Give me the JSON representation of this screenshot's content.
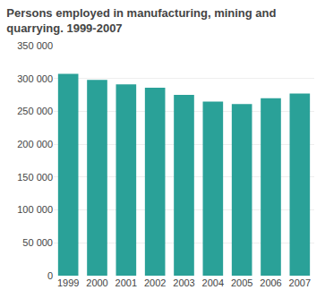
{
  "chart_data": {
    "type": "bar",
    "title": "Persons employed in manufacturing, mining and\nquarrying. 1999-2007",
    "categories": [
      "1999",
      "2000",
      "2001",
      "2002",
      "2003",
      "2004",
      "2005",
      "2006",
      "2007"
    ],
    "values": [
      307000,
      298000,
      291000,
      286000,
      275000,
      265000,
      261000,
      270000,
      277000
    ],
    "color": "#2aa198",
    "ylim": [
      0,
      350000
    ],
    "yticks": [
      0,
      {
        "value": 50000,
        "label": "50 000"
      },
      {
        "value": 100000,
        "label": "100 000"
      },
      {
        "value": 150000,
        "label": "150 000"
      },
      {
        "value": 200000,
        "label": "200 000"
      },
      {
        "value": 250000,
        "label": "250 000"
      },
      {
        "value": 300000,
        "label": "300 000"
      },
      {
        "value": 350000,
        "label": "350 000"
      }
    ],
    "grid": true
  }
}
